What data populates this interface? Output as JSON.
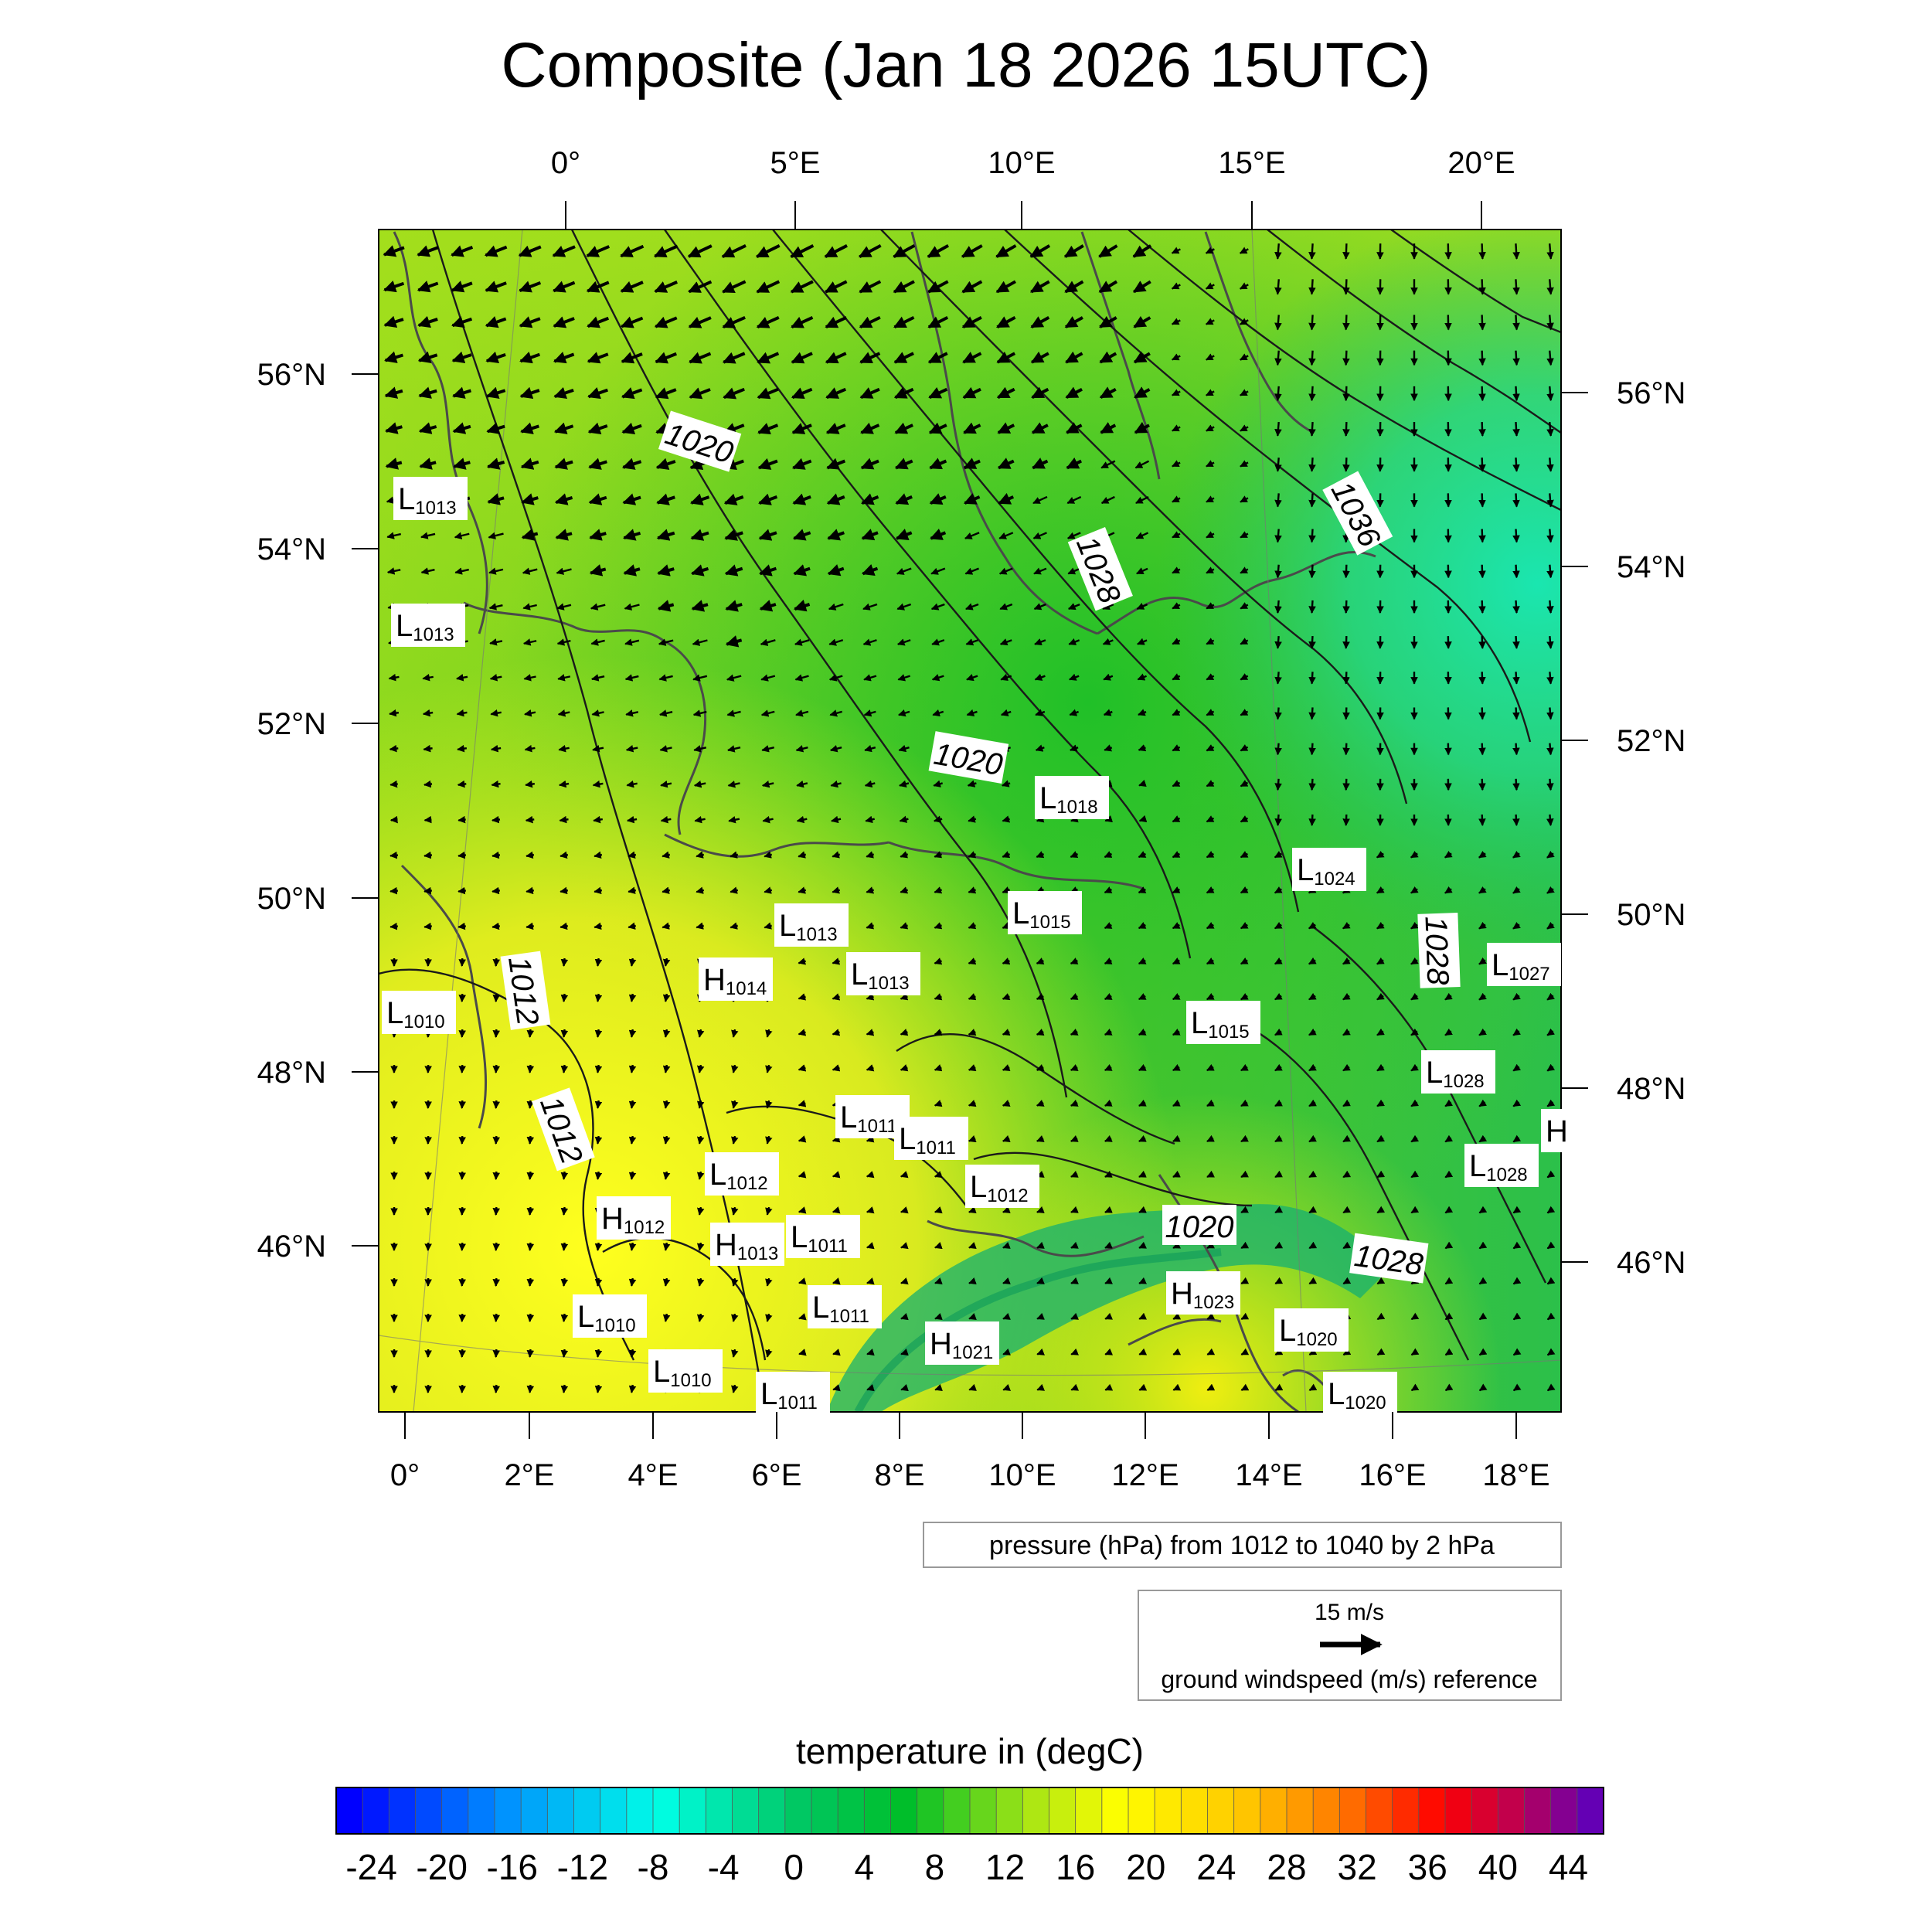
{
  "title": "Composite (Jan 18 2026 15UTC)",
  "axes": {
    "top_lon_labels": [
      "0°",
      "5°E",
      "10°E",
      "15°E",
      "20°E"
    ],
    "bottom_lon_labels": [
      "0°",
      "2°E",
      "4°E",
      "6°E",
      "8°E",
      "10°E",
      "12°E",
      "14°E",
      "16°E",
      "18°E"
    ],
    "left_lat_labels": [
      "56°N",
      "54°N",
      "52°N",
      "50°N",
      "48°N",
      "46°N"
    ],
    "right_lat_labels": [
      "56°N",
      "54°N",
      "52°N",
      "50°N",
      "48°N",
      "46°N"
    ]
  },
  "pressure_note": "pressure (hPa) from 1012 to 1040 by 2 hPa",
  "wind_reference": {
    "speed_label": "15 m/s",
    "caption": "ground windspeed (m/s) reference"
  },
  "colorbar": {
    "title": "temperature in (degC)",
    "tick_labels": [
      "-24",
      "-20",
      "-16",
      "-12",
      "-8",
      "-4",
      "0",
      "4",
      "8",
      "12",
      "16",
      "20",
      "24",
      "28",
      "32",
      "36",
      "40",
      "44"
    ],
    "min": -26,
    "max": 46,
    "step": 1.5
  },
  "isobar_labels": [
    "1020",
    "1036",
    "1028",
    "1020",
    "1012",
    "1028",
    "1012",
    "1020",
    "1028"
  ],
  "pressure_centers": [
    {
      "type": "L",
      "value": "1013"
    },
    {
      "type": "L",
      "value": "1013"
    },
    {
      "type": "L",
      "value": "1018"
    },
    {
      "type": "L",
      "value": "1024"
    },
    {
      "type": "L",
      "value": "1015"
    },
    {
      "type": "L",
      "value": "1013"
    },
    {
      "type": "L",
      "value": "1013"
    },
    {
      "type": "H",
      "value": "1014"
    },
    {
      "type": "L",
      "value": "1027"
    },
    {
      "type": "L",
      "value": "1010"
    },
    {
      "type": "L",
      "value": "1015"
    },
    {
      "type": "L",
      "value": "1028"
    },
    {
      "type": "L",
      "value": "1011"
    },
    {
      "type": "L",
      "value": "1011"
    },
    {
      "type": "L",
      "value": "1012"
    },
    {
      "type": "L",
      "value": "1012"
    },
    {
      "type": "L",
      "value": "1028"
    },
    {
      "type": "H",
      "value": "1012"
    },
    {
      "type": "H",
      "value": "1013"
    },
    {
      "type": "L",
      "value": "1011"
    },
    {
      "type": "L",
      "value": "1011"
    },
    {
      "type": "H",
      "value": "1023"
    },
    {
      "type": "L",
      "value": "1010"
    },
    {
      "type": "H",
      "value": "1021"
    },
    {
      "type": "L",
      "value": "1020"
    },
    {
      "type": "L",
      "value": "1010"
    },
    {
      "type": "L",
      "value": "1011"
    },
    {
      "type": "L",
      "value": "1020"
    },
    {
      "type": "H",
      "value": ""
    }
  ]
}
